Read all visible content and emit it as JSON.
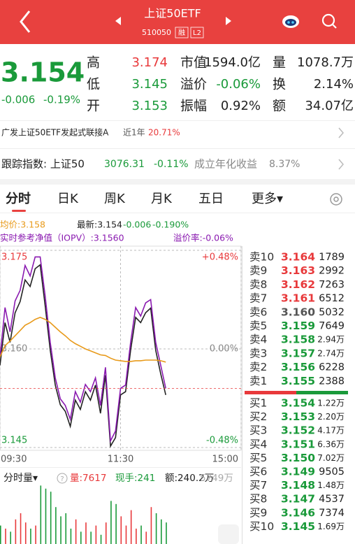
{
  "header": {
    "title": "上证50ETF",
    "code": "510050",
    "badges": [
      "融",
      "L2"
    ]
  },
  "quote": {
    "price": "3.154",
    "change": "-0.006",
    "change_pct": "-0.19%",
    "color": "#1a9a3a",
    "stats": [
      [
        {
          "label": "高",
          "value": "3.174",
          "color": "#e8393b"
        },
        {
          "label": "市值",
          "value": "1594.0亿",
          "color": "#222222"
        },
        {
          "label": "量",
          "value": "1078.7万",
          "color": "#222222"
        }
      ],
      [
        {
          "label": "低",
          "value": "3.145",
          "color": "#1a9a3a"
        },
        {
          "label": "溢价",
          "value": "-0.06%",
          "color": "#1a9a3a"
        },
        {
          "label": "换",
          "value": "2.14%",
          "color": "#222222"
        }
      ],
      [
        {
          "label": "开",
          "value": "3.153",
          "color": "#1a9a3a"
        },
        {
          "label": "振幅",
          "value": "0.92%",
          "color": "#222222"
        },
        {
          "label": "额",
          "value": "34.07亿",
          "color": "#222222"
        }
      ]
    ]
  },
  "fund_link": {
    "name": "广发上证50ETF发起式联接A",
    "period": "近1年",
    "return": "20.71%"
  },
  "tracking": {
    "label": "跟踪指数: 上证50",
    "level": "3076.31",
    "change": "-0.11%",
    "annual_label": "成立年化收益",
    "annual": "8.37%"
  },
  "tabs": [
    "分时",
    "日K",
    "周K",
    "月K",
    "五日",
    "更多▾"
  ],
  "chart_data": [
    {
      "type": "line",
      "annotations": [
        {
          "text": "均价:3.158",
          "color": "#e89a1a"
        },
        {
          "text": "最新:3.154",
          "color": "#222222"
        },
        {
          "text": "-0.006",
          "color": "#1a9a3a"
        },
        {
          "text": "-0.190%",
          "color": "#1a9a3a"
        },
        {
          "text": "实时参考净值（IOPV）:3.1560",
          "color": "#8a1ab0"
        },
        {
          "text": "溢价率:-0.06%",
          "color": "#8a1ab0"
        }
      ],
      "x": [
        0,
        5,
        10,
        15,
        20,
        25,
        30,
        35,
        40,
        45,
        50,
        55,
        60,
        65,
        70,
        75,
        80,
        85,
        90,
        95,
        100,
        105,
        110,
        115,
        120,
        125,
        130,
        135,
        140,
        145,
        150,
        155,
        160,
        165
      ],
      "series": [
        {
          "color": "#222222",
          "values": [
            3.1575,
            3.164,
            3.161,
            3.1655,
            3.1672,
            3.1705,
            3.1695,
            3.1722,
            3.1728,
            3.1665,
            3.1598,
            3.1545,
            3.1515,
            3.1505,
            3.1482,
            3.1522,
            3.1508,
            3.1535,
            3.1522,
            3.1545,
            3.1502,
            3.156,
            3.1452,
            3.1465,
            3.153,
            3.1535,
            3.1598,
            3.1648,
            3.164,
            3.1655,
            3.1662,
            3.1598,
            3.1562,
            3.153
          ]
        },
        {
          "color": "#8a1ab0",
          "values": [
            3.1588,
            3.1663,
            3.1626,
            3.1673,
            3.1689,
            3.1727,
            3.1711,
            3.174,
            3.174,
            3.168,
            3.161,
            3.1556,
            3.1524,
            3.1514,
            3.1493,
            3.1535,
            3.1519,
            3.1546,
            3.1535,
            3.1556,
            3.1514,
            3.1572,
            3.146,
            3.1475,
            3.154,
            3.1545,
            3.161,
            3.1663,
            3.165,
            3.167,
            3.1675,
            3.161,
            3.1575,
            3.154
          ]
        },
        {
          "color": "#e89a1a",
          "values": [
            3.1588,
            3.1605,
            3.1612,
            3.162,
            3.1628,
            3.1636,
            3.164,
            3.1645,
            3.1648,
            3.1645,
            3.164,
            3.1633,
            3.1626,
            3.162,
            3.1613,
            3.1608,
            3.1604,
            3.16,
            3.1597,
            3.1594,
            3.1591,
            3.159,
            3.1586,
            3.1583,
            3.1582,
            3.1581,
            3.1581,
            3.1582,
            3.1582,
            3.1583,
            3.1583,
            3.1583,
            3.1582,
            3.158
          ]
        }
      ],
      "ylim": [
        3.145,
        3.175
      ],
      "yticks": [
        3.145,
        {
          "value": 3.16,
          "label": "3.160"
        },
        3.175
      ],
      "y2lim": [
        -0.48,
        0.48
      ],
      "y2ticks": [
        {
          "value": -0.48,
          "label": "-0.48%"
        },
        {
          "value": 0,
          "label": "0.00%"
        },
        {
          "value": 0.48,
          "label": "+0.48%"
        }
      ],
      "xlim": [
        0,
        240
      ],
      "xticks": [
        {
          "value": 0,
          "label": "09:30"
        },
        {
          "value": 120,
          "label": "11:30"
        },
        {
          "value": 240,
          "label": "15:00"
        }
      ],
      "grid": true
    },
    {
      "type": "bar",
      "annotations": [
        {
          "text": "分时量▾",
          "color": "#222222"
        },
        {
          "text": "量:7617",
          "color": "#e8393b"
        },
        {
          "text": "现手:241",
          "color": "#1a9a3a"
        },
        {
          "text": "额:240.2万",
          "color": "#222222"
        },
        {
          "text": "5749万",
          "color": "#aaaaaa"
        }
      ],
      "x": [
        0,
        5,
        10,
        15,
        20,
        25,
        30,
        35,
        40,
        45,
        50,
        55,
        60,
        65,
        70,
        75,
        80,
        85,
        90,
        95,
        100,
        105,
        110,
        115,
        120,
        125,
        130,
        135,
        140,
        145,
        150,
        155,
        160,
        165
      ],
      "values": [
        3000,
        2500,
        2000,
        4000,
        5000,
        3500,
        2500,
        3000,
        9500,
        9000,
        8500,
        6000,
        4500,
        5000,
        2500,
        4000,
        2000,
        3500,
        2000,
        3000,
        1500,
        3500,
        7000,
        6500,
        4500,
        3000,
        5500,
        2500,
        3000,
        2000,
        6000,
        5000,
        4000,
        3500
      ],
      "colors": [
        "#1a9a3a",
        "#e8393b",
        "#1a9a3a",
        "#e8393b",
        "#e8393b",
        "#e8393b",
        "#1a9a3a",
        "#e8393b",
        "#1a9a3a",
        "#1a9a3a",
        "#1a9a3a",
        "#1a9a3a",
        "#1a9a3a",
        "#1a9a3a",
        "#1a9a3a",
        "#e8393b",
        "#1a9a3a",
        "#e8393b",
        "#1a9a3a",
        "#e8393b",
        "#1a9a3a",
        "#e8393b",
        "#1a9a3a",
        "#1a9a3a",
        "#e8393b",
        "#e8393b",
        "#e8393b",
        "#e8393b",
        "#1a9a3a",
        "#e8393b",
        "#e8393b",
        "#1a9a3a",
        "#1a9a3a",
        "#1a9a3a"
      ],
      "ylim": [
        0,
        10000
      ],
      "xlim": [
        0,
        240
      ]
    }
  ],
  "order_book": {
    "asks": [
      {
        "level": "卖10",
        "price": "3.164",
        "volume": "1789",
        "color": "#e8393b"
      },
      {
        "level": "卖9",
        "price": "3.163",
        "volume": "2992",
        "color": "#e8393b"
      },
      {
        "level": "卖8",
        "price": "3.162",
        "volume": "7263",
        "color": "#e8393b"
      },
      {
        "level": "卖7",
        "price": "3.161",
        "volume": "6512",
        "color": "#e8393b"
      },
      {
        "level": "卖6",
        "price": "3.160",
        "volume": "5032",
        "color": "#555555"
      },
      {
        "level": "卖5",
        "price": "3.159",
        "volume": "7649",
        "color": "#1a9a3a"
      },
      {
        "level": "卖4",
        "price": "3.158",
        "volume": "2.94万",
        "color": "#1a9a3a"
      },
      {
        "level": "卖3",
        "price": "3.157",
        "volume": "2.74万",
        "color": "#1a9a3a"
      },
      {
        "level": "卖2",
        "price": "3.156",
        "volume": "6228",
        "color": "#1a9a3a"
      },
      {
        "level": "卖1",
        "price": "3.155",
        "volume": "2388",
        "color": "#1a9a3a"
      }
    ],
    "bids": [
      {
        "level": "买1",
        "price": "3.154",
        "volume": "1.22万",
        "color": "#1a9a3a"
      },
      {
        "level": "买2",
        "price": "3.153",
        "volume": "2.20万",
        "color": "#1a9a3a"
      },
      {
        "level": "买3",
        "price": "3.152",
        "volume": "4.17万",
        "color": "#1a9a3a"
      },
      {
        "level": "买4",
        "price": "3.151",
        "volume": "6.36万",
        "color": "#1a9a3a"
      },
      {
        "level": "买5",
        "price": "3.150",
        "volume": "7.02万",
        "color": "#1a9a3a"
      },
      {
        "level": "买6",
        "price": "3.149",
        "volume": "9505",
        "color": "#1a9a3a"
      },
      {
        "level": "买7",
        "price": "3.148",
        "volume": "1.48万",
        "color": "#1a9a3a"
      },
      {
        "level": "买8",
        "price": "3.147",
        "volume": "4537",
        "color": "#1a9a3a"
      },
      {
        "level": "买9",
        "price": "3.146",
        "volume": "7374",
        "color": "#1a9a3a"
      },
      {
        "level": "买10",
        "price": "3.145",
        "volume": "1.69万",
        "color": "#1a9a3a"
      }
    ]
  }
}
